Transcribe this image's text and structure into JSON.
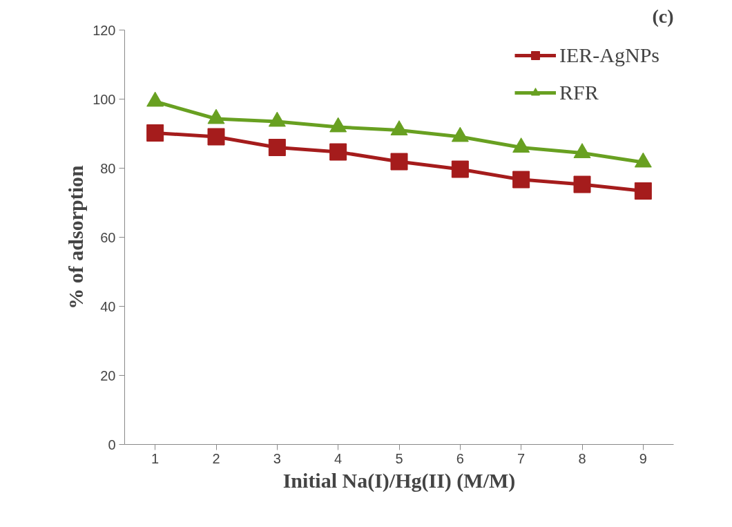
{
  "chart_data": {
    "type": "line",
    "xlabel": "Initial Na(I)/Hg(II) (M/M)",
    "ylabel": "% of adsorption",
    "categories": [
      "1",
      "2",
      "3",
      "4",
      "5",
      "6",
      "7",
      "8",
      "9"
    ],
    "series": [
      {
        "name": "IER-AgNPs",
        "color": "#a51c1c",
        "marker": "square",
        "values": [
          90.2,
          89.1,
          86,
          84.7,
          81.9,
          79.7,
          76.7,
          75.3,
          73.4
        ]
      },
      {
        "name": "RFR",
        "color": "#68a021",
        "marker": "triangle",
        "values": [
          99.3,
          94.3,
          93.5,
          91.9,
          91,
          89.1,
          86,
          84.4,
          81.7
        ]
      }
    ],
    "ylim": [
      0,
      120
    ],
    "yticks": [
      0,
      20,
      40,
      60,
      80,
      100,
      120
    ],
    "grid": false,
    "legend": "top right",
    "annotations": [
      "(c)"
    ]
  }
}
